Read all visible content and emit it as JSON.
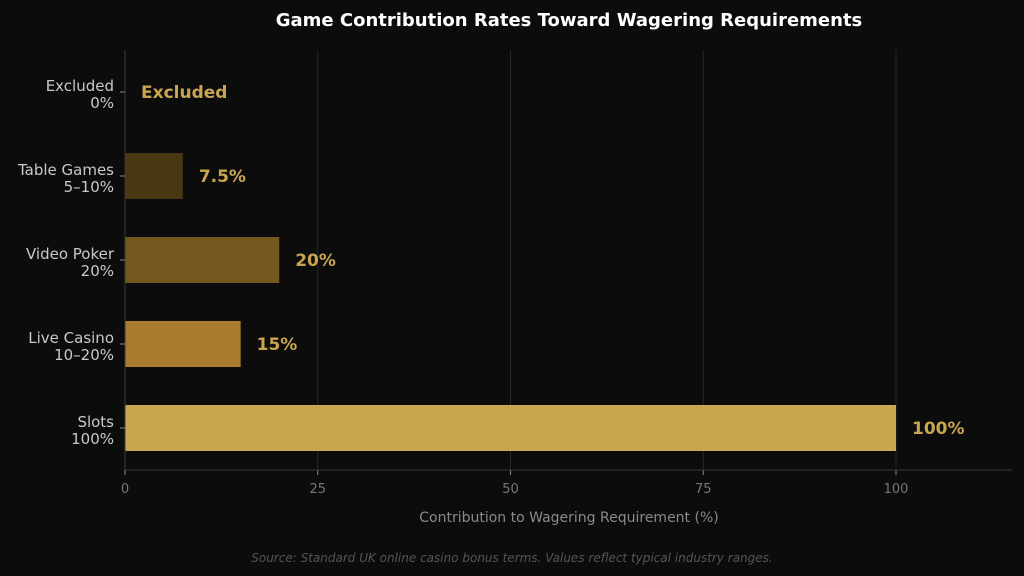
{
  "chart_data": {
    "type": "bar",
    "orientation": "horizontal",
    "title": "Game Contribution Rates Toward Wagering Requirements",
    "xlabel": "Contribution to Wagering Requirement (%)",
    "ylabel": "",
    "xlim": [
      0,
      115
    ],
    "xticks": [
      0,
      25,
      50,
      75,
      100
    ],
    "grid": true,
    "categories": [
      [
        "Excluded",
        "0%"
      ],
      [
        "Table Games",
        "5–10%"
      ],
      [
        "Video Poker",
        "20%"
      ],
      [
        "Live Casino",
        "10–20%"
      ],
      [
        "Slots",
        "100%"
      ]
    ],
    "values": [
      0,
      7.5,
      20,
      15,
      100
    ],
    "value_labels": [
      "Excluded",
      "7.5%",
      "20%",
      "15%",
      "100%"
    ],
    "colors": [
      "#2a2010",
      "#4a3812",
      "#745820",
      "#a87c2c",
      "#c8a84e"
    ],
    "source": "Source: Standard UK online casino bonus terms. Values reflect typical industry ranges."
  },
  "colors": {
    "background": "#0c0c0c",
    "accent": "#c9a550"
  }
}
